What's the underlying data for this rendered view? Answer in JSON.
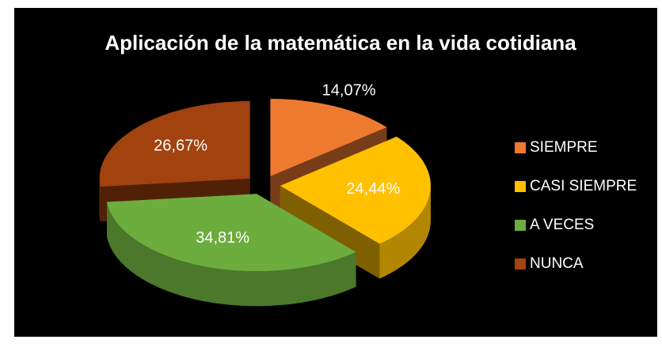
{
  "chart_data": {
    "type": "pie",
    "title": "Aplicación de la matemática en la vida cotidiana",
    "categories": [
      "SIEMPRE",
      "CASI SIEMPRE",
      "A VECES",
      "NUNCA"
    ],
    "values": [
      14.07,
      24.44,
      34.81,
      26.67
    ],
    "value_labels": [
      "14,07%",
      "24,44%",
      "34,81%",
      "26,67%"
    ],
    "colors": [
      "#ee7a30",
      "#ffc000",
      "#6cad3e",
      "#a1420f"
    ],
    "legend": "right"
  }
}
